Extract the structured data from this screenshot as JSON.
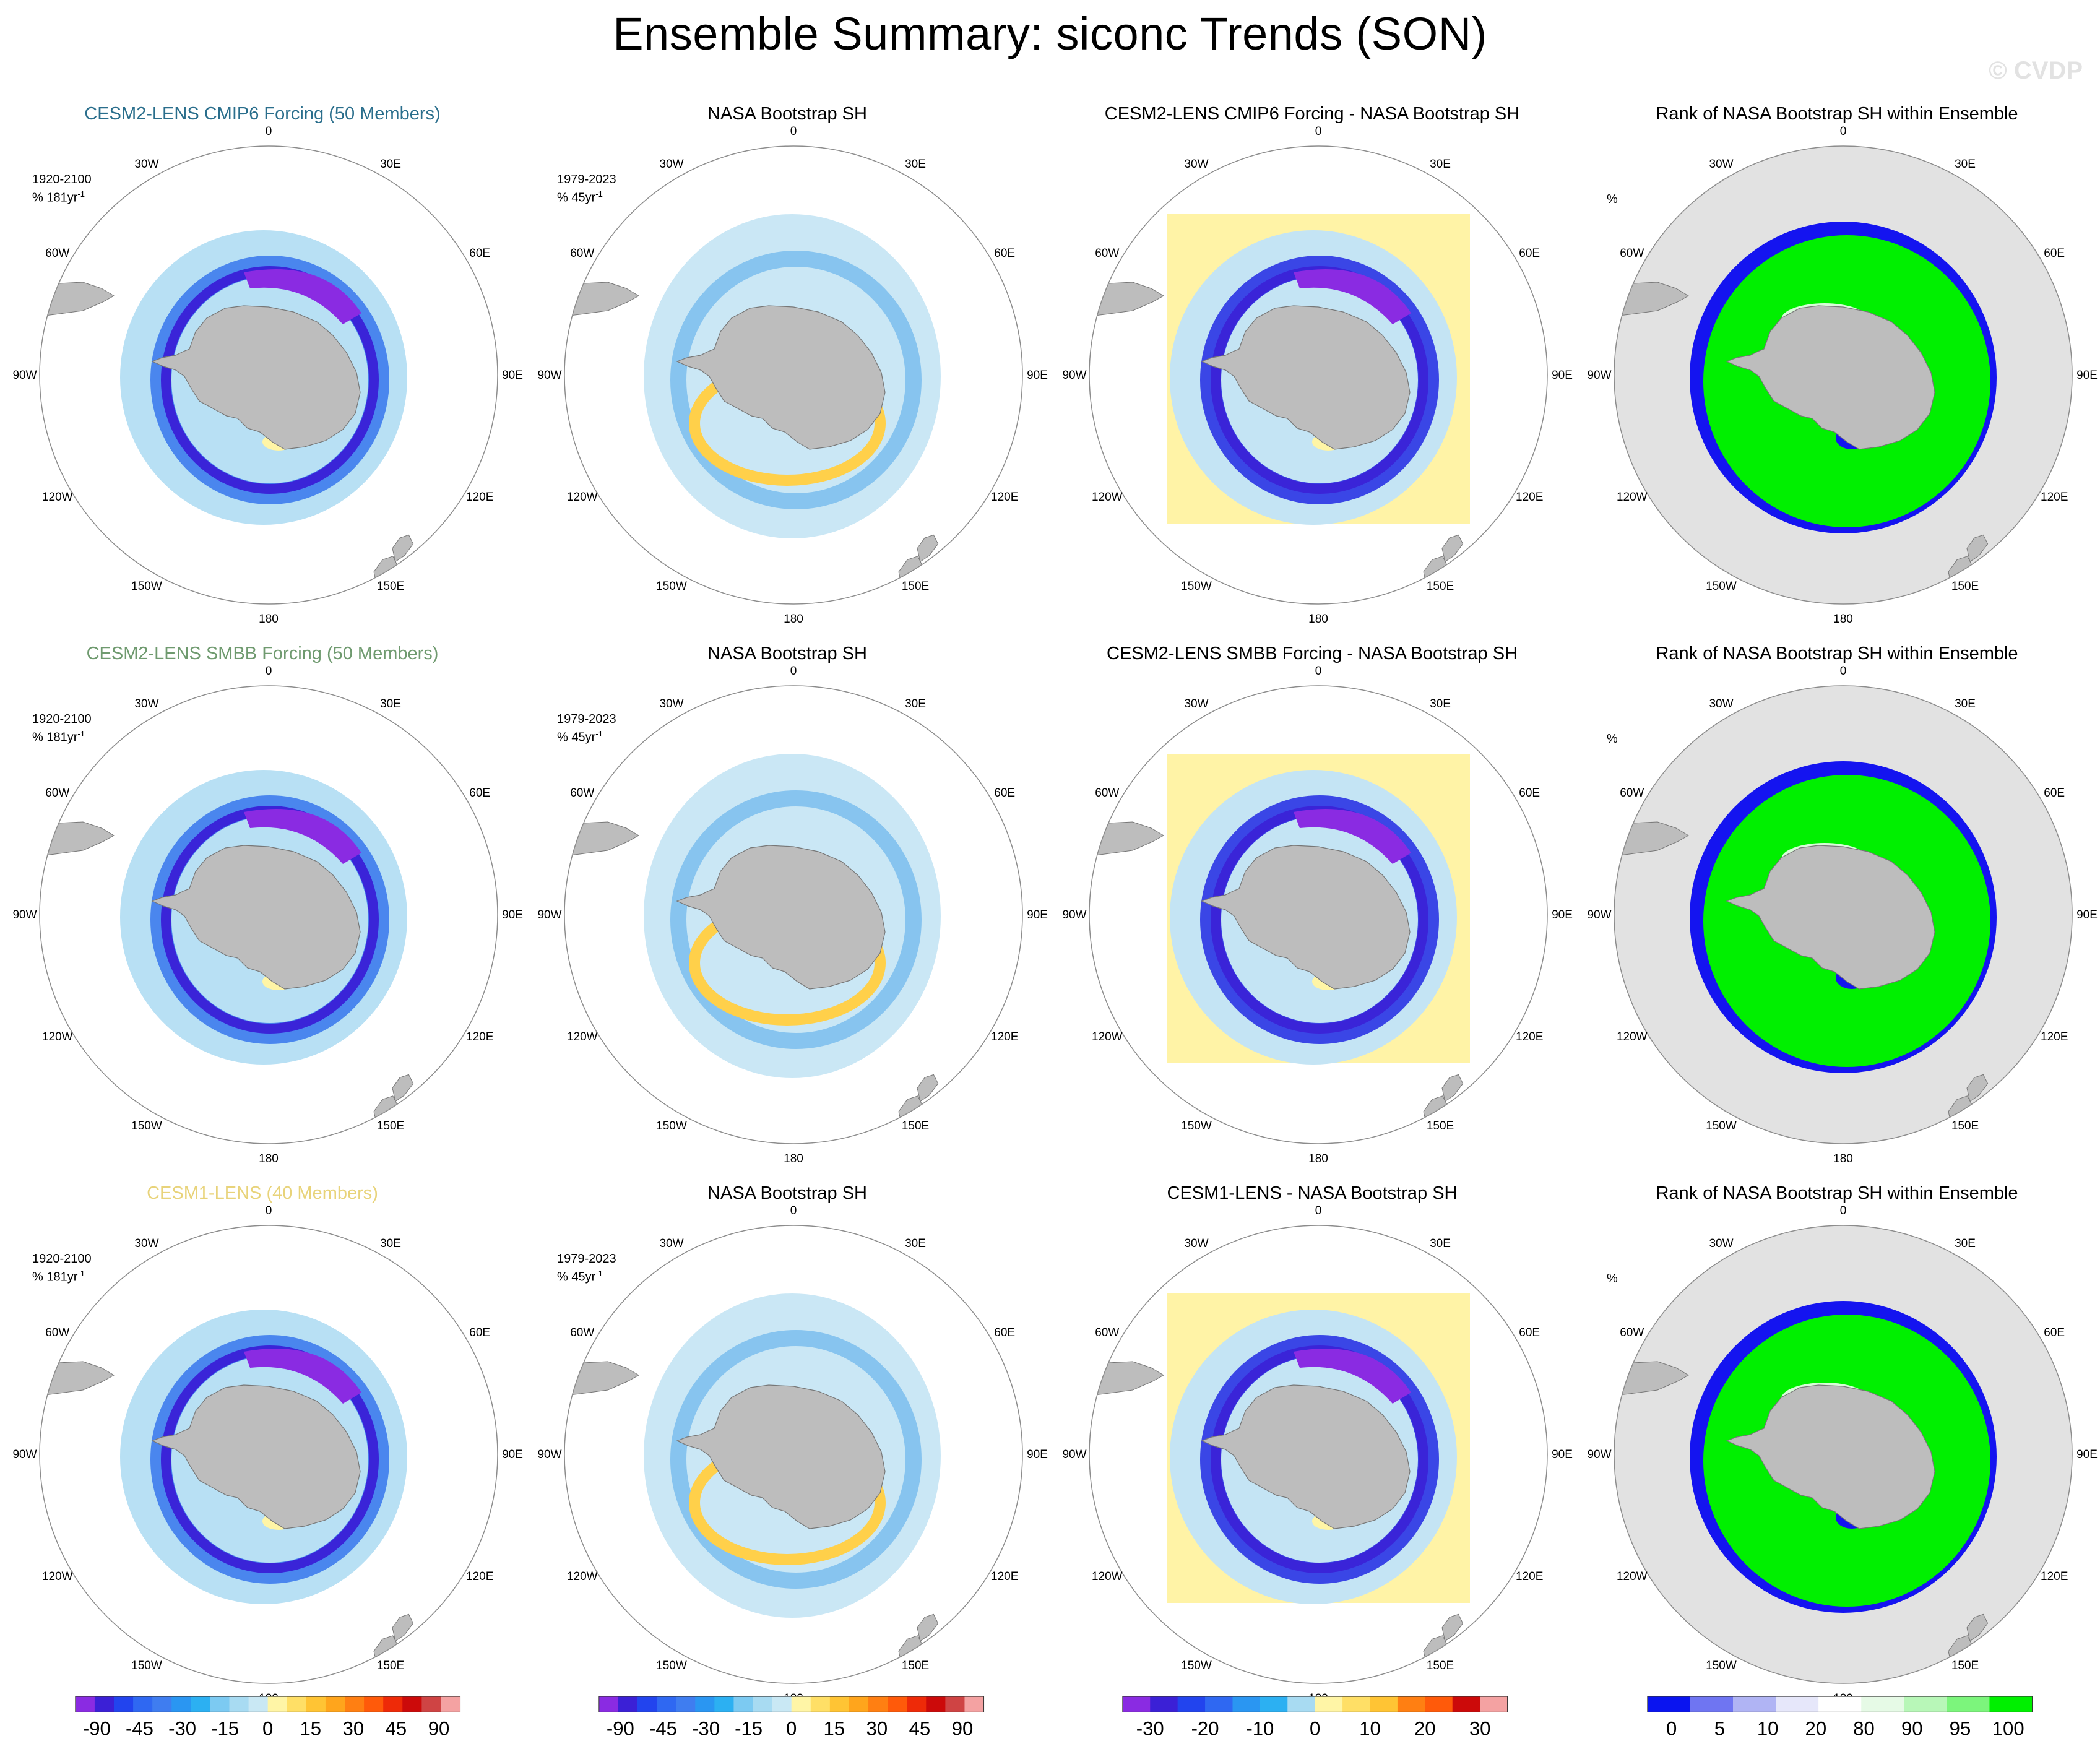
{
  "title": "Ensemble Summary: siconc Trends (SON)",
  "watermark": "© CVDP",
  "lon_labels": [
    "0",
    "30E",
    "60E",
    "90E",
    "120E",
    "150E",
    "180",
    "150W",
    "120W",
    "90W",
    "60W",
    "30W"
  ],
  "panels": [
    {
      "title": "CESM2-LENS CMIP6 Forcing (50 Members)",
      "title_color": "#2a6e8c",
      "period": "1920-2100",
      "units": "% 181yr",
      "kind": "model"
    },
    {
      "title": "NASA Bootstrap SH",
      "title_color": "#000000",
      "period": "1979-2023",
      "units": "% 45yr",
      "kind": "obs"
    },
    {
      "title": "CESM2-LENS CMIP6 Forcing - NASA Bootstrap SH",
      "title_color": "#000000",
      "period": "",
      "units": "",
      "kind": "diff"
    },
    {
      "title": "Rank of NASA Bootstrap SH within Ensemble",
      "title_color": "#000000",
      "period": "",
      "units": "%",
      "kind": "rank"
    },
    {
      "title": "CESM2-LENS SMBB Forcing (50 Members)",
      "title_color": "#6f9a6f",
      "period": "1920-2100",
      "units": "% 181yr",
      "kind": "model"
    },
    {
      "title": "NASA Bootstrap SH",
      "title_color": "#000000",
      "period": "1979-2023",
      "units": "% 45yr",
      "kind": "obs"
    },
    {
      "title": "CESM2-LENS SMBB Forcing - NASA Bootstrap SH",
      "title_color": "#000000",
      "period": "",
      "units": "",
      "kind": "diff"
    },
    {
      "title": "Rank of NASA Bootstrap SH within Ensemble",
      "title_color": "#000000",
      "period": "",
      "units": "%",
      "kind": "rank"
    },
    {
      "title": "CESM1-LENS (40 Members)",
      "title_color": "#e8d37a",
      "period": "1920-2100",
      "units": "% 181yr",
      "kind": "model"
    },
    {
      "title": "NASA Bootstrap SH",
      "title_color": "#000000",
      "period": "1979-2023",
      "units": "% 45yr",
      "kind": "obs"
    },
    {
      "title": "CESM1-LENS - NASA Bootstrap SH",
      "title_color": "#000000",
      "period": "",
      "units": "",
      "kind": "diff"
    },
    {
      "title": "Rank of NASA Bootstrap SH within Ensemble",
      "title_color": "#000000",
      "period": "",
      "units": "%",
      "kind": "rank"
    }
  ],
  "colorbars": [
    {
      "labels": [
        "-90",
        "-45",
        "-30",
        "-15",
        "0",
        "15",
        "30",
        "45",
        "90"
      ],
      "colors": [
        "#8a2be2",
        "#3b20d6",
        "#2244ee",
        "#2f68f2",
        "#3f7df0",
        "#2a96f2",
        "#2cb0f2",
        "#7ccaf2",
        "#a8dbf2",
        "#c9e8f4",
        "#fff5a6",
        "#ffdf66",
        "#ffc434",
        "#ffa51c",
        "#ff7f12",
        "#ff5a0a",
        "#ee2a08",
        "#cc0a0a",
        "#cf4444",
        "#f4a2a2"
      ]
    },
    {
      "labels": [
        "-90",
        "-45",
        "-30",
        "-15",
        "0",
        "15",
        "30",
        "45",
        "90"
      ],
      "colors": [
        "#8a2be2",
        "#3b20d6",
        "#2244ee",
        "#2f68f2",
        "#3f7df0",
        "#2a96f2",
        "#2cb0f2",
        "#7ccaf2",
        "#a8dbf2",
        "#c9e8f4",
        "#fff5a6",
        "#ffdf66",
        "#ffc434",
        "#ffa51c",
        "#ff7f12",
        "#ff5a0a",
        "#ee2a08",
        "#cc0a0a",
        "#cf4444",
        "#f4a2a2"
      ]
    },
    {
      "labels": [
        "-30",
        "-20",
        "-10",
        "0",
        "10",
        "20",
        "30"
      ],
      "colors": [
        "#8a2be2",
        "#3b20d6",
        "#2244ee",
        "#2f68f2",
        "#2a96f2",
        "#2cb0f2",
        "#a8dbf2",
        "#fff5a6",
        "#ffdf66",
        "#ffc434",
        "#ff7f12",
        "#ff5a0a",
        "#cc0a0a",
        "#f4a2a2"
      ]
    },
    {
      "labels": [
        "0",
        "5",
        "10",
        "20",
        "80",
        "90",
        "95",
        "100"
      ],
      "colors": [
        "#0a14f0",
        "#6f75f2",
        "#b0b4f4",
        "#e6e7fa",
        "#ffffff",
        "#e6fae6",
        "#b8f7b8",
        "#7cf57c",
        "#00f000"
      ]
    }
  ]
}
